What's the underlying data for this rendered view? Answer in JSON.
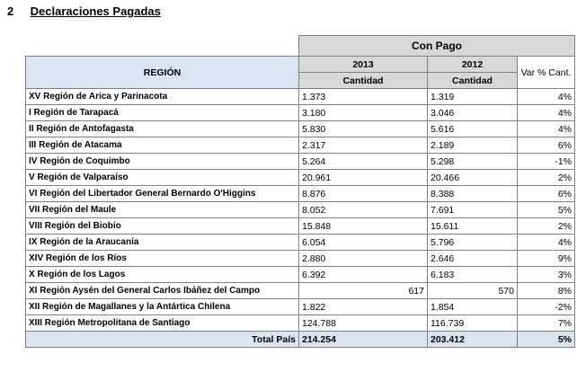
{
  "heading": {
    "number": "2",
    "title": "Declaraciones Pagadas"
  },
  "table": {
    "group_header": "Con Pago",
    "region_header": "REGIÓN",
    "year_2013": "2013",
    "year_2012": "2012",
    "sub_2013": "Cantidad",
    "sub_2012": "Cantidad",
    "var_header": "Var % Cant.",
    "rows": [
      {
        "region": "XV Región de Arica y Parinacota",
        "v2013": "1.373",
        "v2012": "1.319",
        "var": "4%"
      },
      {
        "region": "I Región de Tarapacá",
        "v2013": "3.180",
        "v2012": "3.046",
        "var": "4%"
      },
      {
        "region": "II Región de Antofagasta",
        "v2013": "5.830",
        "v2012": "5.616",
        "var": "4%"
      },
      {
        "region": "III Región de Atacama",
        "v2013": "2.317",
        "v2012": "2.189",
        "var": "6%"
      },
      {
        "region": "IV Región de Coquimbo",
        "v2013": "5.264",
        "v2012": "5.298",
        "var": "-1%"
      },
      {
        "region": "V Región de Valparaíso",
        "v2013": "20.961",
        "v2012": "20.466",
        "var": "2%"
      },
      {
        "region": "VI Región del Libertador General Bernardo O'Higgins",
        "v2013": "8.876",
        "v2012": "8.388",
        "var": "6%"
      },
      {
        "region": "VII Región del Maule",
        "v2013": "8.052",
        "v2012": "7.691",
        "var": "5%"
      },
      {
        "region": "VIII Región del Biobío",
        "v2013": "15.848",
        "v2012": "15.611",
        "var": "2%"
      },
      {
        "region": "IX Región de la Araucanía",
        "v2013": "6.054",
        "v2012": "5.796",
        "var": "4%"
      },
      {
        "region": "XIV Región de los Ríos",
        "v2013": "2.880",
        "v2012": "2.646",
        "var": "9%"
      },
      {
        "region": "X Región de los Lagos",
        "v2013": "6.392",
        "v2012": "6.183",
        "var": "3%"
      },
      {
        "region": "XI Región Aysén del General Carlos Ibáñez del Campo",
        "v2013": "617",
        "v2012": "570",
        "var": "8%"
      },
      {
        "region": "XII Región de Magallanes y la Antártica Chilena",
        "v2013": "1.822",
        "v2012": "1.854",
        "var": "-2%"
      },
      {
        "region": "XIII Región Metropolitana de Santiago",
        "v2013": "124.788",
        "v2012": "116.739",
        "var": "7%"
      }
    ],
    "total": {
      "label": "Total País",
      "v2013": "214.254",
      "v2012": "203.412",
      "var": "5%"
    }
  }
}
